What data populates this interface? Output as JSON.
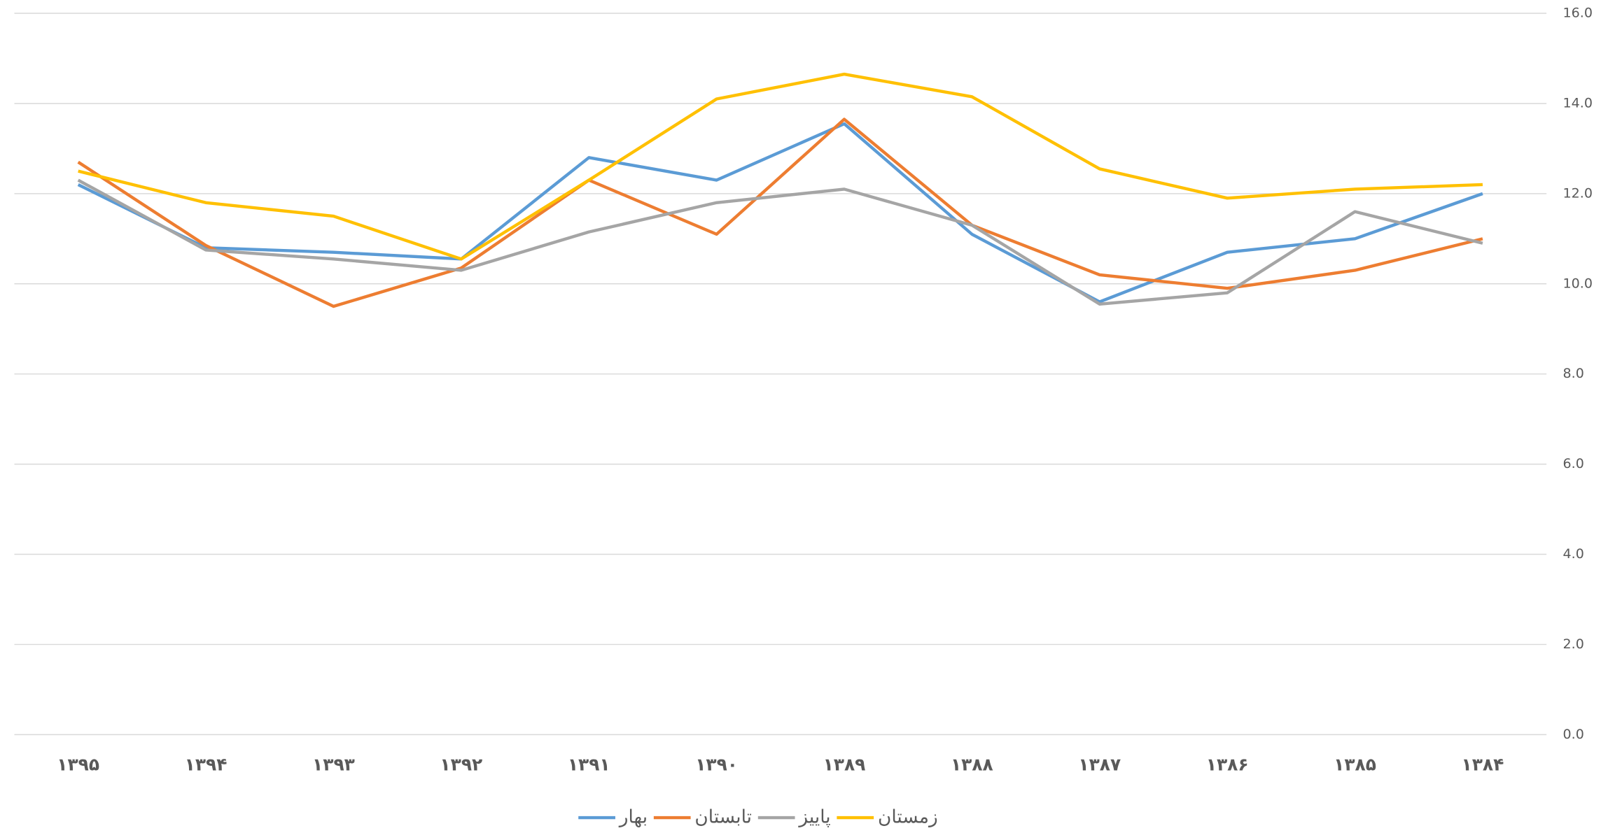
{
  "chart_data": {
    "type": "line",
    "categories": [
      "۱۳۹۵",
      "۱۳۹۴",
      "۱۳۹۳",
      "۱۳۹۲",
      "۱۳۹۱",
      "۱۳۹۰",
      "۱۳۸۹",
      "۱۳۸۸",
      "۱۳۸۷",
      "۱۳۸۶",
      "۱۳۸۵",
      "۱۳۸۴"
    ],
    "series": [
      {
        "name": "بهار",
        "color": "#5b9bd5",
        "values": [
          12.2,
          10.8,
          10.7,
          10.55,
          12.8,
          12.3,
          13.55,
          11.1,
          9.6,
          10.7,
          11.0,
          12.0
        ]
      },
      {
        "name": "تابستان",
        "color": "#ed7d31",
        "values": [
          12.7,
          10.85,
          9.5,
          10.35,
          12.3,
          11.1,
          13.65,
          11.3,
          10.2,
          9.9,
          10.3,
          11.0
        ]
      },
      {
        "name": "پاییز",
        "color": "#a5a5a5",
        "values": [
          12.3,
          10.75,
          10.55,
          10.3,
          11.15,
          11.8,
          12.1,
          11.3,
          9.55,
          9.8,
          11.6,
          10.9
        ]
      },
      {
        "name": "زمستان",
        "color": "#ffc000",
        "values": [
          12.5,
          11.8,
          11.5,
          10.55,
          12.3,
          14.1,
          14.65,
          14.15,
          12.55,
          11.9,
          12.1,
          12.2
        ]
      }
    ],
    "ylim": [
      0,
      16
    ],
    "yticks": [
      {
        "value": 0,
        "label": "0.0"
      },
      {
        "value": 2,
        "label": "2.0"
      },
      {
        "value": 4,
        "label": "4.0"
      },
      {
        "value": 6,
        "label": "6.0"
      },
      {
        "value": 8,
        "label": "8.0"
      },
      {
        "value": 10,
        "label": "10.0"
      },
      {
        "value": 12,
        "label": "12.0"
      },
      {
        "value": 14,
        "label": "14.0"
      },
      {
        "value": 16,
        "label": "16.0"
      }
    ],
    "grid": true,
    "legend": "bottom"
  }
}
